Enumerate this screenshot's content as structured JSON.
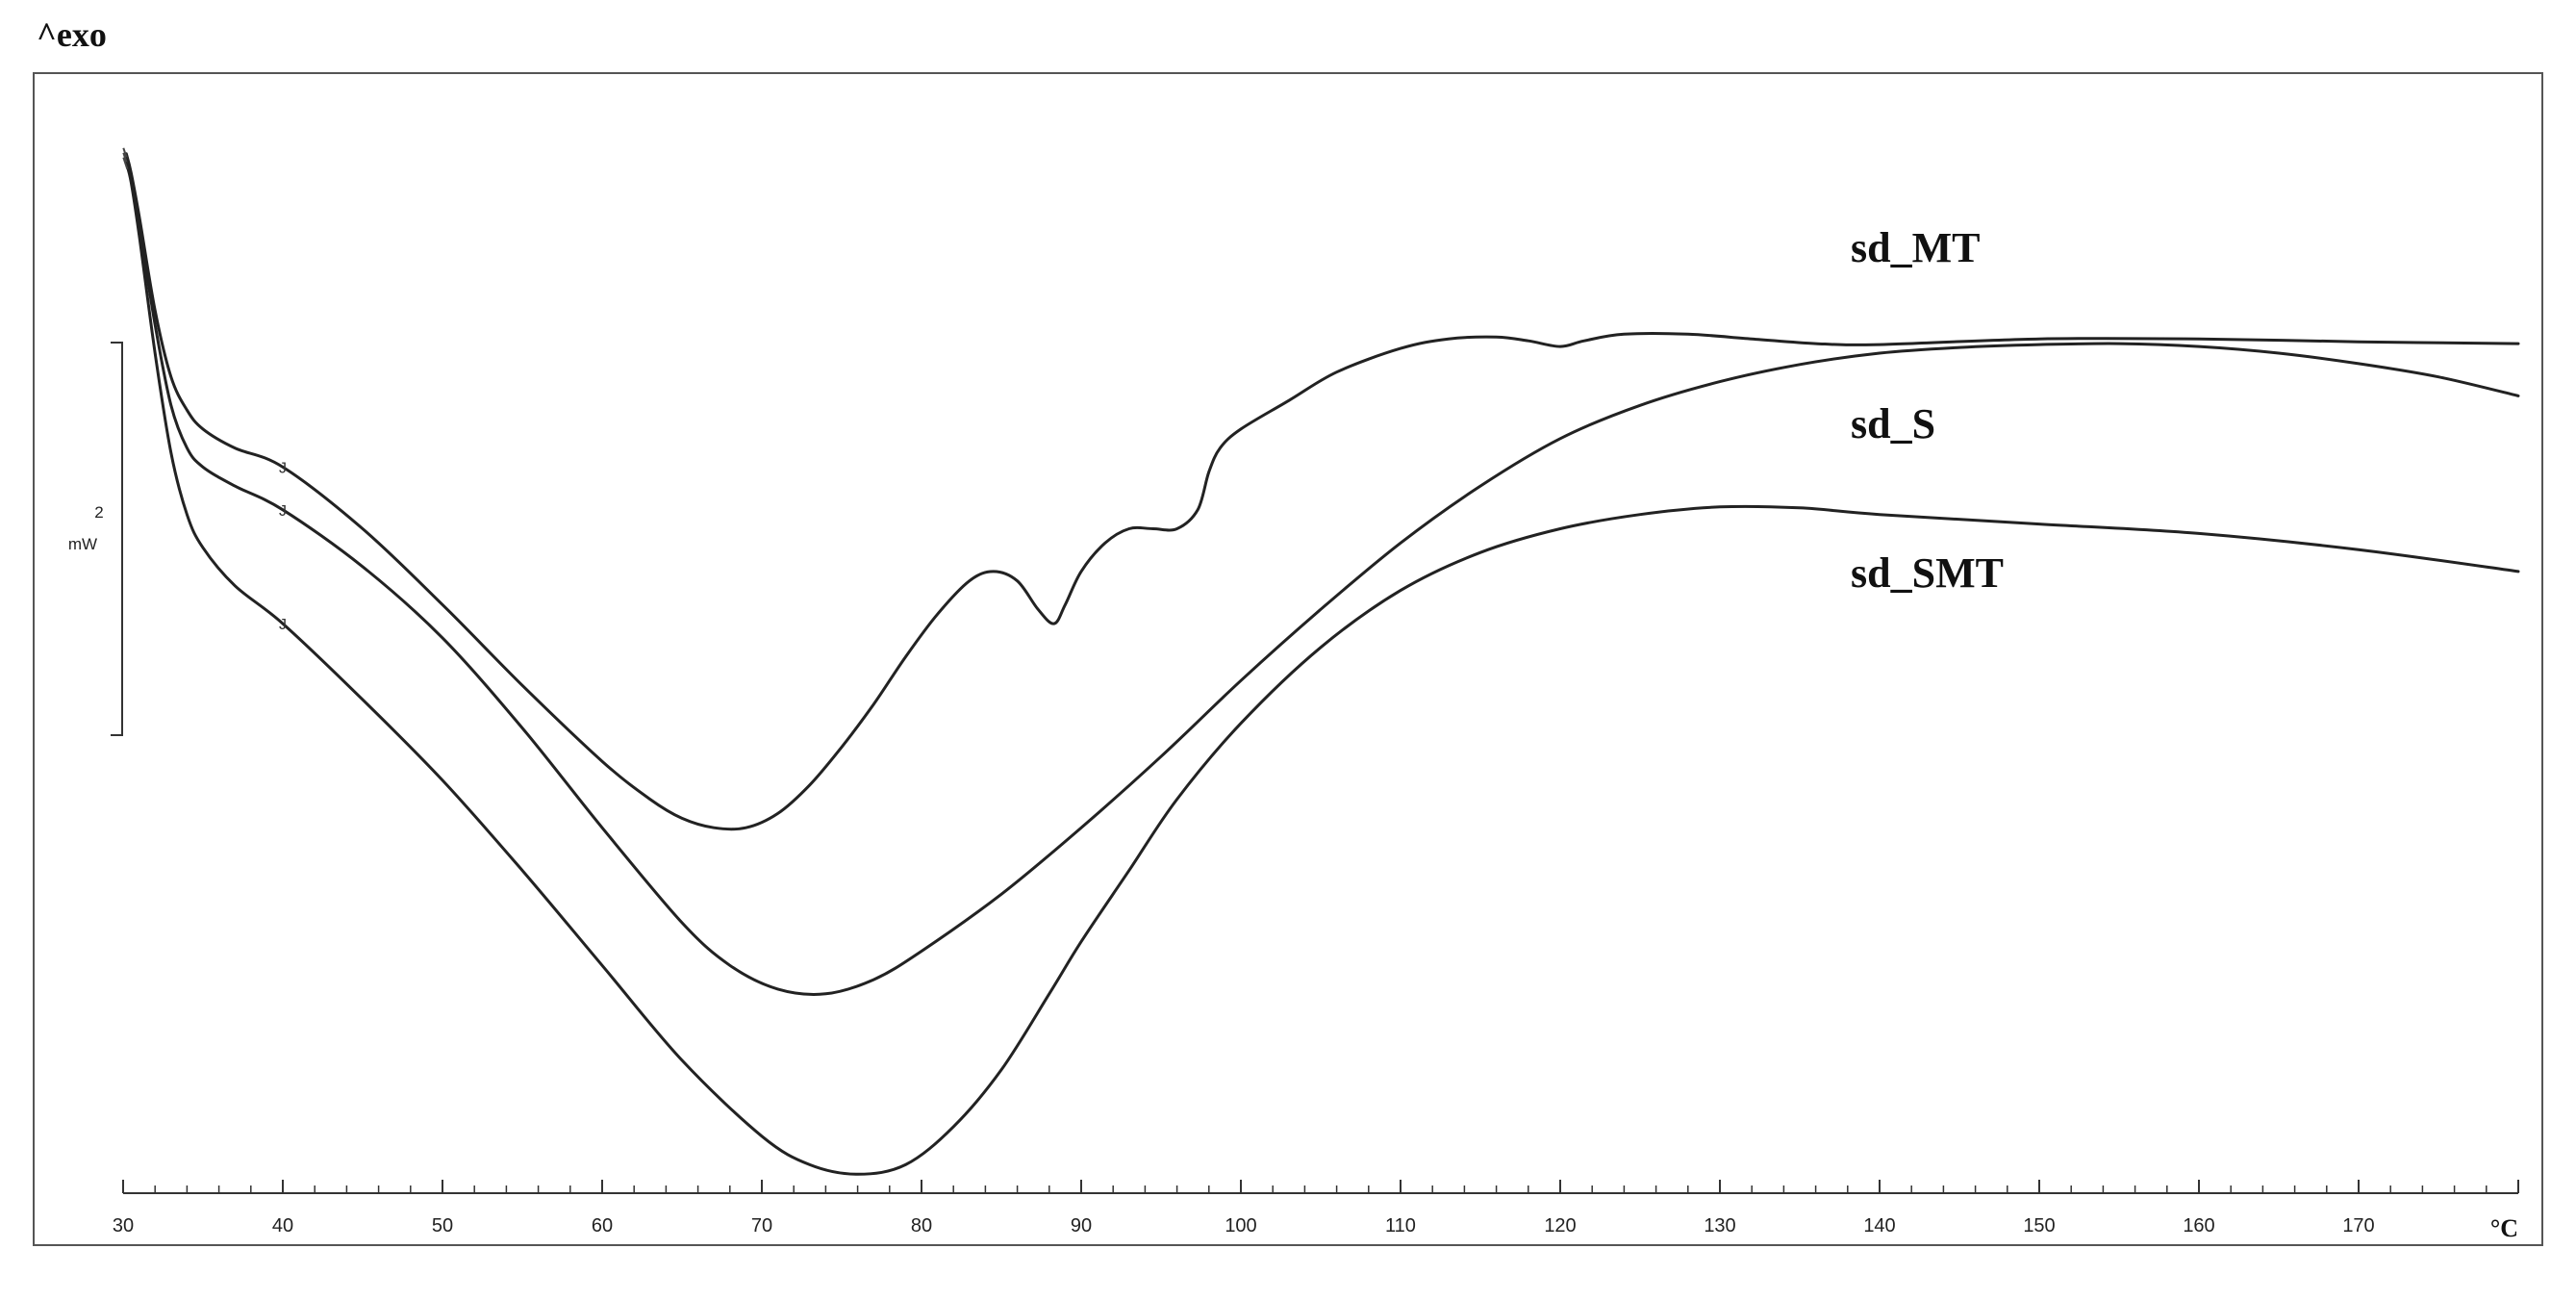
{
  "chart_data": {
    "type": "line",
    "exo_label": "^exo",
    "x_unit": "°C",
    "scale_bar": {
      "value": "2",
      "unit": "mW"
    },
    "xlim": [
      30,
      180
    ],
    "ylim": [
      -10.6,
      1.2
    ],
    "x_ticks": [
      30,
      40,
      50,
      60,
      70,
      80,
      90,
      100,
      110,
      120,
      130,
      140,
      150,
      160,
      170
    ],
    "marker_glyph": "J",
    "marker_x": 40,
    "series": [
      {
        "name": "sd_MT",
        "marker": -2.95,
        "points": [
          [
            30.2,
            0.35
          ],
          [
            30.5,
            0.15
          ],
          [
            31,
            -0.3
          ],
          [
            32,
            -1.3
          ],
          [
            33,
            -2.0
          ],
          [
            34,
            -2.35
          ],
          [
            35,
            -2.55
          ],
          [
            37,
            -2.75
          ],
          [
            40,
            -2.95
          ],
          [
            45,
            -3.6
          ],
          [
            50,
            -4.4
          ],
          [
            55,
            -5.25
          ],
          [
            60,
            -6.05
          ],
          [
            63,
            -6.45
          ],
          [
            65,
            -6.65
          ],
          [
            67,
            -6.75
          ],
          [
            69,
            -6.75
          ],
          [
            71,
            -6.6
          ],
          [
            73,
            -6.3
          ],
          [
            75,
            -5.9
          ],
          [
            77,
            -5.45
          ],
          [
            79,
            -4.95
          ],
          [
            81,
            -4.5
          ],
          [
            83,
            -4.15
          ],
          [
            84.5,
            -4.05
          ],
          [
            86,
            -4.15
          ],
          [
            87.3,
            -4.45
          ],
          [
            88.3,
            -4.6
          ],
          [
            89,
            -4.4
          ],
          [
            90,
            -4.05
          ],
          [
            91.5,
            -3.75
          ],
          [
            93,
            -3.6
          ],
          [
            94.5,
            -3.6
          ],
          [
            96,
            -3.6
          ],
          [
            97.3,
            -3.4
          ],
          [
            98,
            -3.0
          ],
          [
            98.7,
            -2.75
          ],
          [
            100,
            -2.55
          ],
          [
            103,
            -2.25
          ],
          [
            106,
            -1.95
          ],
          [
            110,
            -1.7
          ],
          [
            113,
            -1.6
          ],
          [
            116,
            -1.58
          ],
          [
            118,
            -1.62
          ],
          [
            120,
            -1.68
          ],
          [
            121.5,
            -1.62
          ],
          [
            124,
            -1.55
          ],
          [
            128,
            -1.55
          ],
          [
            132,
            -1.6
          ],
          [
            136,
            -1.65
          ],
          [
            140,
            -1.66
          ],
          [
            150,
            -1.6
          ],
          [
            160,
            -1.6
          ],
          [
            170,
            -1.63
          ],
          [
            180,
            -1.65
          ]
        ]
      },
      {
        "name": "sd_S",
        "marker": -3.4,
        "points": [
          [
            30.2,
            0.3
          ],
          [
            30.5,
            0.1
          ],
          [
            31,
            -0.4
          ],
          [
            32,
            -1.45
          ],
          [
            33,
            -2.3
          ],
          [
            34,
            -2.75
          ],
          [
            35,
            -2.95
          ],
          [
            37,
            -3.15
          ],
          [
            40,
            -3.4
          ],
          [
            45,
            -4.0
          ],
          [
            50,
            -4.75
          ],
          [
            55,
            -5.7
          ],
          [
            60,
            -6.75
          ],
          [
            65,
            -7.75
          ],
          [
            68,
            -8.2
          ],
          [
            71,
            -8.45
          ],
          [
            74,
            -8.5
          ],
          [
            77,
            -8.35
          ],
          [
            80,
            -8.05
          ],
          [
            85,
            -7.45
          ],
          [
            90,
            -6.75
          ],
          [
            95,
            -6.0
          ],
          [
            100,
            -5.2
          ],
          [
            105,
            -4.45
          ],
          [
            110,
            -3.75
          ],
          [
            115,
            -3.15
          ],
          [
            120,
            -2.65
          ],
          [
            125,
            -2.3
          ],
          [
            130,
            -2.05
          ],
          [
            135,
            -1.87
          ],
          [
            140,
            -1.75
          ],
          [
            145,
            -1.69
          ],
          [
            150,
            -1.66
          ],
          [
            155,
            -1.65
          ],
          [
            160,
            -1.68
          ],
          [
            165,
            -1.75
          ],
          [
            170,
            -1.86
          ],
          [
            175,
            -2.0
          ],
          [
            180,
            -2.2
          ]
        ]
      },
      {
        "name": "sd_SMT",
        "marker": -4.6,
        "points": [
          [
            30.2,
            0.25
          ],
          [
            30.5,
            0.05
          ],
          [
            31,
            -0.5
          ],
          [
            32,
            -1.75
          ],
          [
            33,
            -2.8
          ],
          [
            34,
            -3.45
          ],
          [
            35,
            -3.8
          ],
          [
            37,
            -4.2
          ],
          [
            40,
            -4.6
          ],
          [
            45,
            -5.4
          ],
          [
            50,
            -6.25
          ],
          [
            55,
            -7.2
          ],
          [
            60,
            -8.2
          ],
          [
            65,
            -9.2
          ],
          [
            70,
            -10.0
          ],
          [
            73,
            -10.3
          ],
          [
            76,
            -10.4
          ],
          [
            79,
            -10.3
          ],
          [
            82,
            -9.9
          ],
          [
            85,
            -9.3
          ],
          [
            88,
            -8.5
          ],
          [
            90,
            -7.95
          ],
          [
            93,
            -7.2
          ],
          [
            96,
            -6.45
          ],
          [
            100,
            -5.65
          ],
          [
            105,
            -4.85
          ],
          [
            110,
            -4.25
          ],
          [
            115,
            -3.85
          ],
          [
            120,
            -3.6
          ],
          [
            125,
            -3.45
          ],
          [
            130,
            -3.37
          ],
          [
            135,
            -3.38
          ],
          [
            140,
            -3.45
          ],
          [
            150,
            -3.55
          ],
          [
            160,
            -3.65
          ],
          [
            170,
            -3.82
          ],
          [
            180,
            -4.05
          ]
        ]
      }
    ]
  }
}
